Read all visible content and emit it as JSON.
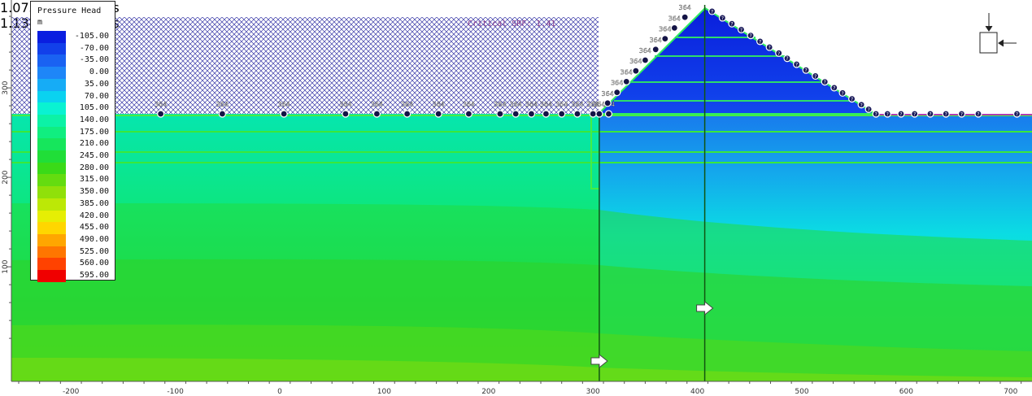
{
  "legend": {
    "title": "Pressure Head",
    "unit": "m",
    "entries": [
      {
        "value": "-105.00",
        "color": "#0a1ee0"
      },
      {
        "value": "-70.00",
        "color": "#1240ea"
      },
      {
        "value": "-35.00",
        "color": "#1a62f2"
      },
      {
        "value": "0.00",
        "color": "#1e86f8"
      },
      {
        "value": "35.00",
        "color": "#16acf6"
      },
      {
        "value": "70.00",
        "color": "#0ad2f0"
      },
      {
        "value": "105.00",
        "color": "#0af2d2"
      },
      {
        "value": "140.00",
        "color": "#0cf2a6"
      },
      {
        "value": "175.00",
        "color": "#10ee80"
      },
      {
        "value": "210.00",
        "color": "#16e65c"
      },
      {
        "value": "245.00",
        "color": "#20de38"
      },
      {
        "value": "280.00",
        "color": "#3ada18"
      },
      {
        "value": "315.00",
        "color": "#64dc10"
      },
      {
        "value": "350.00",
        "color": "#90e00a"
      },
      {
        "value": "385.00",
        "color": "#bce806"
      },
      {
        "value": "420.00",
        "color": "#e6ee04"
      },
      {
        "value": "455.00",
        "color": "#ffd600"
      },
      {
        "value": "490.00",
        "color": "#ffa600"
      },
      {
        "value": "525.00",
        "color": "#ff7600"
      },
      {
        "value": "560.00",
        "color": "#ff4200"
      },
      {
        "value": "595.00",
        "color": "#f00000"
      }
    ]
  },
  "critical_srf": "Critical SRF: 1.41",
  "x_axis": {
    "min": -250,
    "max": 710,
    "ticks": [
      "-200",
      "-100",
      "0",
      "100",
      "200",
      "300",
      "400",
      "500",
      "600",
      "700"
    ]
  },
  "y_axis": {
    "min": 15,
    "max": 380,
    "ticks": [
      "100",
      "200",
      "300"
    ]
  },
  "flux_sections": [
    {
      "x": 306,
      "value": "1.0738e-005 m3/s"
    },
    {
      "x": 407,
      "value": "1.1316e-005 m3/s"
    }
  ],
  "boundary_label": "364",
  "unknown_label": "?",
  "upstream_nodes_x": [
    -114,
    -55,
    4,
    63,
    93,
    122,
    152,
    181,
    211,
    226,
    241,
    255,
    270,
    285,
    300,
    315
  ],
  "dam_nodes": [
    {
      "x": 306,
      "y": 271
    },
    {
      "x": 314,
      "y": 283
    },
    {
      "x": 323,
      "y": 295
    },
    {
      "x": 332,
      "y": 307
    },
    {
      "x": 341,
      "y": 319
    },
    {
      "x": 350,
      "y": 331
    },
    {
      "x": 360,
      "y": 343
    },
    {
      "x": 369,
      "y": 355
    },
    {
      "x": 378,
      "y": 367
    },
    {
      "x": 388,
      "y": 379
    }
  ],
  "downstream_nodes_x": [
    414,
    424,
    433,
    442,
    451,
    460,
    469,
    478,
    486,
    495,
    504,
    513,
    522,
    531,
    539,
    548,
    557,
    564,
    571,
    582,
    595,
    608,
    623,
    638,
    653,
    669,
    706
  ]
}
